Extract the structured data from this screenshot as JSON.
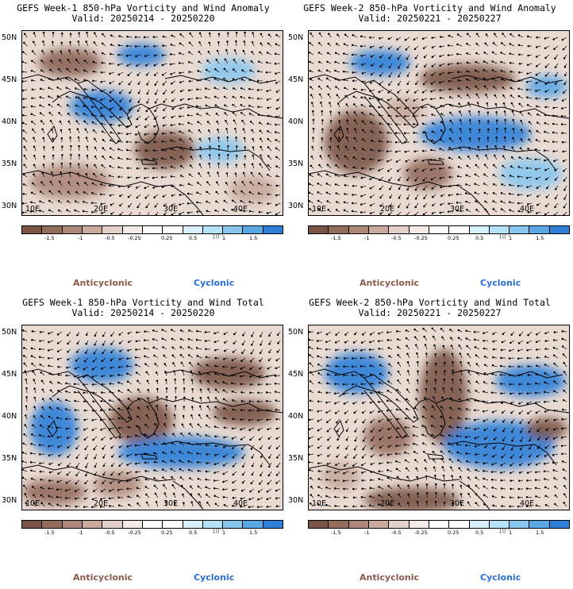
{
  "panels": [
    {
      "title_line1": "GEFS Week-1 850-hPa Vorticity and Wind Anomaly",
      "title_line2": "Valid: 20250214 - 20250220",
      "field": "anomaly",
      "week": 1
    },
    {
      "title_line1": "GEFS Week-2 850-hPa Vorticity and Wind Anomaly",
      "title_line2": "Valid: 20250221 - 20250227",
      "field": "anomaly",
      "week": 2
    },
    {
      "title_line1": "GEFS Week-1 850-hPa Vorticity and Wind Total",
      "title_line2": "Valid: 20250214 - 20250220",
      "field": "total",
      "week": 1
    },
    {
      "title_line1": "GEFS Week-2 850-hPa Vorticity and Wind Total",
      "title_line2": "Valid: 20250221 - 20250227",
      "field": "total",
      "week": 2
    }
  ],
  "lat_labels": [
    "50N",
    "45N",
    "40N",
    "35N",
    "30N"
  ],
  "lon_labels": [
    "10E",
    "20E",
    "30E",
    "40E"
  ],
  "colorbar": {
    "colors": [
      "#7a5446",
      "#946c5c",
      "#ad887a",
      "#c8a99c",
      "#e3d0c8",
      "#f4ebe7",
      "#ffffff",
      "#ffffff",
      "#d8f0fb",
      "#b5e2f6",
      "#88c6ee",
      "#5aa7e6",
      "#2f7fd8"
    ],
    "labels": [
      "-1.5",
      "-1",
      "-0.5",
      "-0.25",
      "0.25",
      "0.5",
      "1",
      "1.5"
    ],
    "scale_label": "10",
    "scale_exponent": "-5"
  },
  "legend": {
    "anticyclonic": "Anticyclonic",
    "cyclonic": "Cyclonic"
  }
}
